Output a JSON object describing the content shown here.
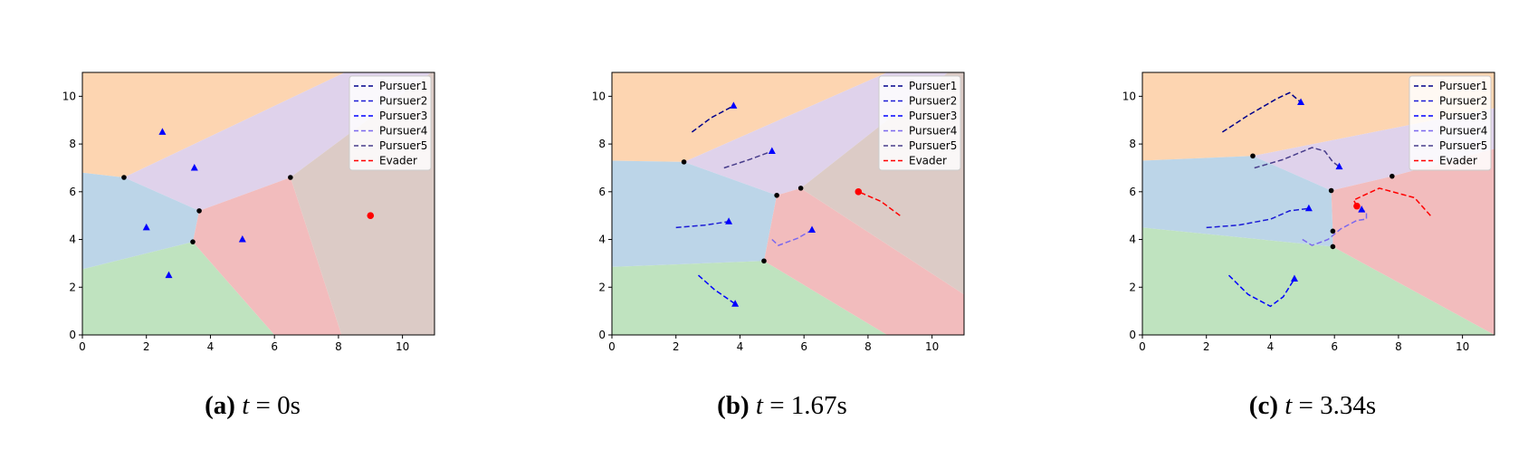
{
  "colors": {
    "regions": [
      "#fdd5b1",
      "#dfd2eb",
      "#bcd5e8",
      "#bfe3bf",
      "#f2bcbd",
      "#dccbc6"
    ],
    "pursuer_lines": [
      "#00008b",
      "#1c1cd6",
      "#0000ff",
      "#7b68ee",
      "#483d8b"
    ],
    "evader_line": "#ff0000",
    "pursuer_marker": "#0000ff",
    "evader_marker": "#ff0000",
    "vertex_marker": "#000000"
  },
  "chart_data": [
    {
      "type": "scatter",
      "panel": "a",
      "caption": {
        "label": "(a)",
        "var": "t",
        "rest": " = 0s"
      },
      "xlim": [
        0,
        11
      ],
      "ylim": [
        0,
        11
      ],
      "xticks": [
        "0",
        "2",
        "4",
        "6",
        "8",
        "10"
      ],
      "yticks": [
        "0",
        "2",
        "4",
        "6",
        "8",
        "10"
      ],
      "grid": false,
      "legend_position": "top-right",
      "legend": [
        "Pursuer1",
        "Pursuer2",
        "Pursuer3",
        "Pursuer4",
        "Pursuer5",
        "Evader"
      ],
      "regions": [
        [
          [
            0,
            11
          ],
          [
            8.2,
            11
          ],
          [
            1.3,
            6.6
          ],
          [
            0,
            6.8
          ]
        ],
        [
          [
            1.3,
            6.6
          ],
          [
            8.2,
            11
          ],
          [
            10.9,
            11
          ],
          [
            6.5,
            6.6
          ],
          [
            3.65,
            5.2
          ]
        ],
        [
          [
            0,
            6.8
          ],
          [
            1.3,
            6.6
          ],
          [
            3.65,
            5.2
          ],
          [
            3.45,
            3.9
          ],
          [
            0,
            2.75
          ]
        ],
        [
          [
            0,
            0
          ],
          [
            0,
            2.75
          ],
          [
            3.45,
            3.9
          ],
          [
            6,
            0
          ]
        ],
        [
          [
            3.45,
            3.9
          ],
          [
            3.65,
            5.2
          ],
          [
            6.5,
            6.6
          ],
          [
            8.1,
            0
          ],
          [
            6,
            0
          ]
        ],
        [
          [
            6.5,
            6.6
          ],
          [
            10.9,
            11
          ],
          [
            11,
            11
          ],
          [
            11,
            0
          ],
          [
            8.1,
            0
          ]
        ]
      ],
      "vertices": [
        [
          1.3,
          6.6
        ],
        [
          3.65,
          5.2
        ],
        [
          3.45,
          3.9
        ],
        [
          6.5,
          6.6
        ]
      ],
      "pursuers": [
        [
          2.5,
          8.5
        ],
        [
          3.5,
          7.0
        ],
        [
          2.0,
          4.5
        ],
        [
          5.0,
          4.0
        ],
        [
          2.7,
          2.5
        ]
      ],
      "pursuer_paths": [],
      "evader": [
        9.0,
        5.0
      ],
      "evader_path": []
    },
    {
      "type": "scatter",
      "panel": "b",
      "caption": {
        "label": "(b)",
        "var": "t",
        "rest": " = 1.67s"
      },
      "xlim": [
        0,
        11
      ],
      "ylim": [
        0,
        11
      ],
      "xticks": [
        "0",
        "2",
        "4",
        "6",
        "8",
        "10"
      ],
      "yticks": [
        "0",
        "2",
        "4",
        "6",
        "8",
        "10"
      ],
      "grid": false,
      "legend_position": "top-right",
      "legend": [
        "Pursuer1",
        "Pursuer2",
        "Pursuer3",
        "Pursuer4",
        "Pursuer5",
        "Evader"
      ],
      "regions": [
        [
          [
            0,
            11
          ],
          [
            8.6,
            11
          ],
          [
            2.25,
            7.25
          ],
          [
            0,
            7.3
          ]
        ],
        [
          [
            2.25,
            7.25
          ],
          [
            8.6,
            11
          ],
          [
            10.5,
            11
          ],
          [
            5.9,
            6.15
          ],
          [
            5.15,
            5.85
          ]
        ],
        [
          [
            0,
            7.3
          ],
          [
            2.25,
            7.25
          ],
          [
            5.15,
            5.85
          ],
          [
            4.75,
            3.1
          ],
          [
            0,
            2.85
          ]
        ],
        [
          [
            0,
            0
          ],
          [
            0,
            2.85
          ],
          [
            4.75,
            3.1
          ],
          [
            8.6,
            0
          ]
        ],
        [
          [
            4.75,
            3.1
          ],
          [
            5.15,
            5.85
          ],
          [
            5.9,
            6.15
          ],
          [
            11,
            1.7
          ],
          [
            11,
            0
          ],
          [
            8.6,
            0
          ]
        ],
        [
          [
            5.9,
            6.15
          ],
          [
            10.5,
            11
          ],
          [
            11,
            11
          ],
          [
            11,
            1.7
          ]
        ]
      ],
      "vertices": [
        [
          2.25,
          7.25
        ],
        [
          5.15,
          5.85
        ],
        [
          5.9,
          6.15
        ],
        [
          4.75,
          3.1
        ]
      ],
      "pursuers": [
        [
          3.8,
          9.6
        ],
        [
          5.0,
          7.7
        ],
        [
          3.65,
          4.75
        ],
        [
          6.25,
          4.4
        ],
        [
          3.85,
          1.3
        ]
      ],
      "pursuer_paths": [
        [
          [
            2.5,
            8.5
          ],
          [
            3.1,
            9.1
          ],
          [
            3.8,
            9.6
          ]
        ],
        [
          [
            2.0,
            4.5
          ],
          [
            2.9,
            4.6
          ],
          [
            3.65,
            4.75
          ]
        ],
        [
          [
            2.7,
            2.5
          ],
          [
            3.2,
            1.9
          ],
          [
            3.85,
            1.3
          ]
        ],
        [
          [
            5.0,
            4.0
          ],
          [
            5.2,
            3.75
          ],
          [
            5.8,
            4.05
          ],
          [
            6.25,
            4.4
          ]
        ],
        [
          [
            3.5,
            7.0
          ],
          [
            4.3,
            7.35
          ],
          [
            5.0,
            7.7
          ]
        ]
      ],
      "evader": [
        7.7,
        6.0
      ],
      "evader_path": [
        [
          9.0,
          5.0
        ],
        [
          8.4,
          5.6
        ],
        [
          7.7,
          6.0
        ]
      ]
    },
    {
      "type": "scatter",
      "panel": "c",
      "caption": {
        "label": "(c)",
        "var": "t",
        "rest": " = 3.34s"
      },
      "xlim": [
        0,
        11
      ],
      "ylim": [
        0,
        11
      ],
      "xticks": [
        "0",
        "2",
        "4",
        "6",
        "8",
        "10"
      ],
      "yticks": [
        "0",
        "2",
        "4",
        "6",
        "8",
        "10"
      ],
      "grid": false,
      "legend_position": "top-right",
      "legend": [
        "Pursuer1",
        "Pursuer2",
        "Pursuer3",
        "Pursuer4",
        "Pursuer5",
        "Evader"
      ],
      "regions": [
        [
          [
            0,
            11
          ],
          [
            11,
            11
          ],
          [
            11,
            9.5
          ],
          [
            3.45,
            7.5
          ],
          [
            0,
            7.3
          ]
        ],
        [
          [
            3.45,
            7.5
          ],
          [
            11,
            9.5
          ],
          [
            11,
            7.8
          ],
          [
            7.8,
            6.65
          ],
          [
            5.9,
            6.05
          ]
        ],
        [
          [
            0,
            7.3
          ],
          [
            3.45,
            7.5
          ],
          [
            5.9,
            6.05
          ],
          [
            5.95,
            4.35
          ],
          [
            5.95,
            3.7
          ],
          [
            0,
            4.5
          ]
        ],
        [
          [
            0,
            0
          ],
          [
            0,
            4.5
          ],
          [
            5.95,
            3.7
          ],
          [
            11,
            0
          ]
        ],
        [
          [
            5.95,
            4.35
          ],
          [
            5.9,
            6.05
          ],
          [
            7.8,
            6.65
          ],
          [
            11,
            7.8
          ],
          [
            11,
            0
          ],
          [
            5.95,
            3.7
          ]
        ]
      ],
      "vertices": [
        [
          3.45,
          7.5
        ],
        [
          5.9,
          6.05
        ],
        [
          7.8,
          6.65
        ],
        [
          5.95,
          4.35
        ],
        [
          5.95,
          3.7
        ]
      ],
      "pursuers": [
        [
          4.95,
          9.75
        ],
        [
          6.15,
          7.05
        ],
        [
          5.2,
          5.3
        ],
        [
          6.85,
          5.25
        ],
        [
          4.75,
          2.35
        ]
      ],
      "pursuer_paths": [
        [
          [
            2.5,
            8.5
          ],
          [
            3.3,
            9.2
          ],
          [
            4.2,
            9.9
          ],
          [
            4.6,
            10.15
          ],
          [
            4.95,
            9.75
          ]
        ],
        [
          [
            2.0,
            4.5
          ],
          [
            3.0,
            4.6
          ],
          [
            4.0,
            4.85
          ],
          [
            4.6,
            5.2
          ],
          [
            5.2,
            5.3
          ]
        ],
        [
          [
            2.7,
            2.5
          ],
          [
            3.3,
            1.7
          ],
          [
            4.0,
            1.2
          ],
          [
            4.4,
            1.6
          ],
          [
            4.75,
            2.35
          ]
        ],
        [
          [
            5.0,
            4.0
          ],
          [
            5.3,
            3.75
          ],
          [
            5.8,
            4.0
          ],
          [
            6.2,
            4.45
          ],
          [
            6.7,
            4.8
          ],
          [
            7.0,
            4.85
          ],
          [
            7.0,
            5.15
          ],
          [
            6.85,
            5.25
          ]
        ],
        [
          [
            3.5,
            7.0
          ],
          [
            4.4,
            7.35
          ],
          [
            5.3,
            7.85
          ],
          [
            5.7,
            7.7
          ],
          [
            5.95,
            7.25
          ],
          [
            6.15,
            7.05
          ]
        ]
      ],
      "evader": [
        6.7,
        5.4
      ],
      "evader_path": [
        [
          9.0,
          5.0
        ],
        [
          8.5,
          5.75
        ],
        [
          7.4,
          6.15
        ],
        [
          6.6,
          5.65
        ],
        [
          6.7,
          5.4
        ]
      ]
    }
  ]
}
